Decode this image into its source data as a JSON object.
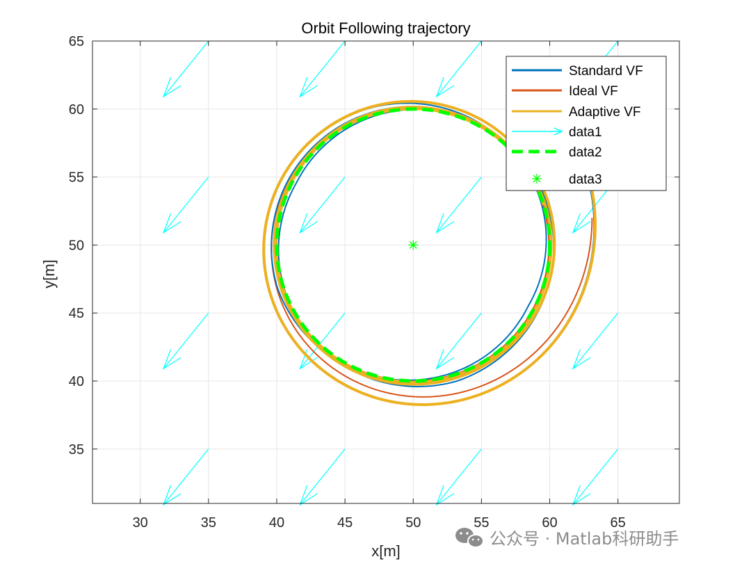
{
  "chart_data": {
    "type": "line",
    "title": "Orbit Following trajectory",
    "xlabel": "x[m]",
    "ylabel": "y[m]",
    "xlim": [
      26.5,
      69.5
    ],
    "ylim": [
      31,
      65
    ],
    "xticks": [
      30,
      35,
      40,
      45,
      50,
      55,
      60,
      65
    ],
    "yticks": [
      35,
      40,
      45,
      50,
      55,
      60,
      65
    ],
    "xtick_labels": [
      "30",
      "35",
      "40",
      "45",
      "50",
      "55",
      "60",
      "65"
    ],
    "ytick_labels": [
      "35",
      "40",
      "45",
      "50",
      "55",
      "60",
      "65"
    ],
    "grid": true,
    "legend_location": "top-right",
    "center": [
      50,
      50
    ],
    "orbit_radius": 10,
    "series": [
      {
        "name": "Standard VF",
        "color": "#0072BD",
        "style": "solid",
        "start": [
          63,
          54
        ],
        "radius_offsets": [
          0.5,
          0.3,
          0.2,
          -0.6,
          0.4,
          0.1,
          0.5,
          -0.3,
          0.3
        ],
        "turns": 3,
        "points": [
          [
            63,
            54
          ],
          [
            62.4,
            47
          ],
          [
            59.8,
            43
          ],
          [
            55.5,
            40.3
          ],
          [
            50,
            39.8
          ],
          [
            44,
            41.5
          ],
          [
            40.6,
            46
          ],
          [
            39.7,
            50
          ],
          [
            41.2,
            55.5
          ],
          [
            45,
            59
          ],
          [
            50,
            60.4
          ],
          [
            55,
            59.2
          ],
          [
            59.2,
            55.5
          ],
          [
            60.4,
            50
          ]
        ]
      },
      {
        "name": "Ideal VF",
        "color": "#D95319",
        "style": "solid",
        "start": [
          63.1,
          52
        ],
        "radius_offsets": [
          0.5,
          0.1,
          -0.1,
          0.05,
          0.0
        ],
        "turns": 2,
        "points": [
          [
            63.1,
            52
          ],
          [
            62.4,
            46.5
          ],
          [
            60,
            42.5
          ],
          [
            55.5,
            40
          ],
          [
            50.5,
            39.4
          ],
          [
            45,
            40.8
          ],
          [
            41,
            45
          ],
          [
            39.8,
            50
          ],
          [
            41.5,
            55.3
          ],
          [
            45,
            58.8
          ],
          [
            50,
            60.1
          ],
          [
            55,
            58.9
          ],
          [
            58.7,
            55.3
          ],
          [
            60,
            50
          ]
        ]
      },
      {
        "name": "Adaptive VF",
        "color": "#EDB120",
        "style": "solid",
        "start": [
          63.1,
          54
        ],
        "radius_offsets": [
          0.4,
          0.2,
          0.1,
          0.0
        ],
        "turns": 3,
        "points": [
          [
            63.1,
            54
          ],
          [
            62.5,
            49
          ],
          [
            61,
            45
          ],
          [
            57,
            41.5
          ],
          [
            52,
            40
          ],
          [
            46,
            40.8
          ],
          [
            41.5,
            44.5
          ],
          [
            40,
            50
          ],
          [
            41.2,
            55.2
          ],
          [
            45,
            58.8
          ],
          [
            50,
            60
          ],
          [
            55,
            58.8
          ],
          [
            58.8,
            55
          ],
          [
            60,
            50
          ]
        ]
      },
      {
        "name": "data1",
        "color": "#00FFFF",
        "style": "arrow",
        "description": "quiver field",
        "x_positions": [
          35,
          45,
          55,
          65
        ],
        "y_positions": [
          35,
          45,
          55,
          65
        ],
        "dx": -3.3,
        "dy": -4.1
      },
      {
        "name": "data2",
        "color": "#00FF00",
        "style": "dashed",
        "description": "desired orbit",
        "center": [
          50,
          50
        ],
        "radius": 10
      },
      {
        "name": "data3",
        "color": "#00FF00",
        "style": "asterisk",
        "points": [
          [
            50,
            50
          ]
        ]
      }
    ]
  },
  "watermark": {
    "text": "公众号 · Matlab科研助手"
  }
}
